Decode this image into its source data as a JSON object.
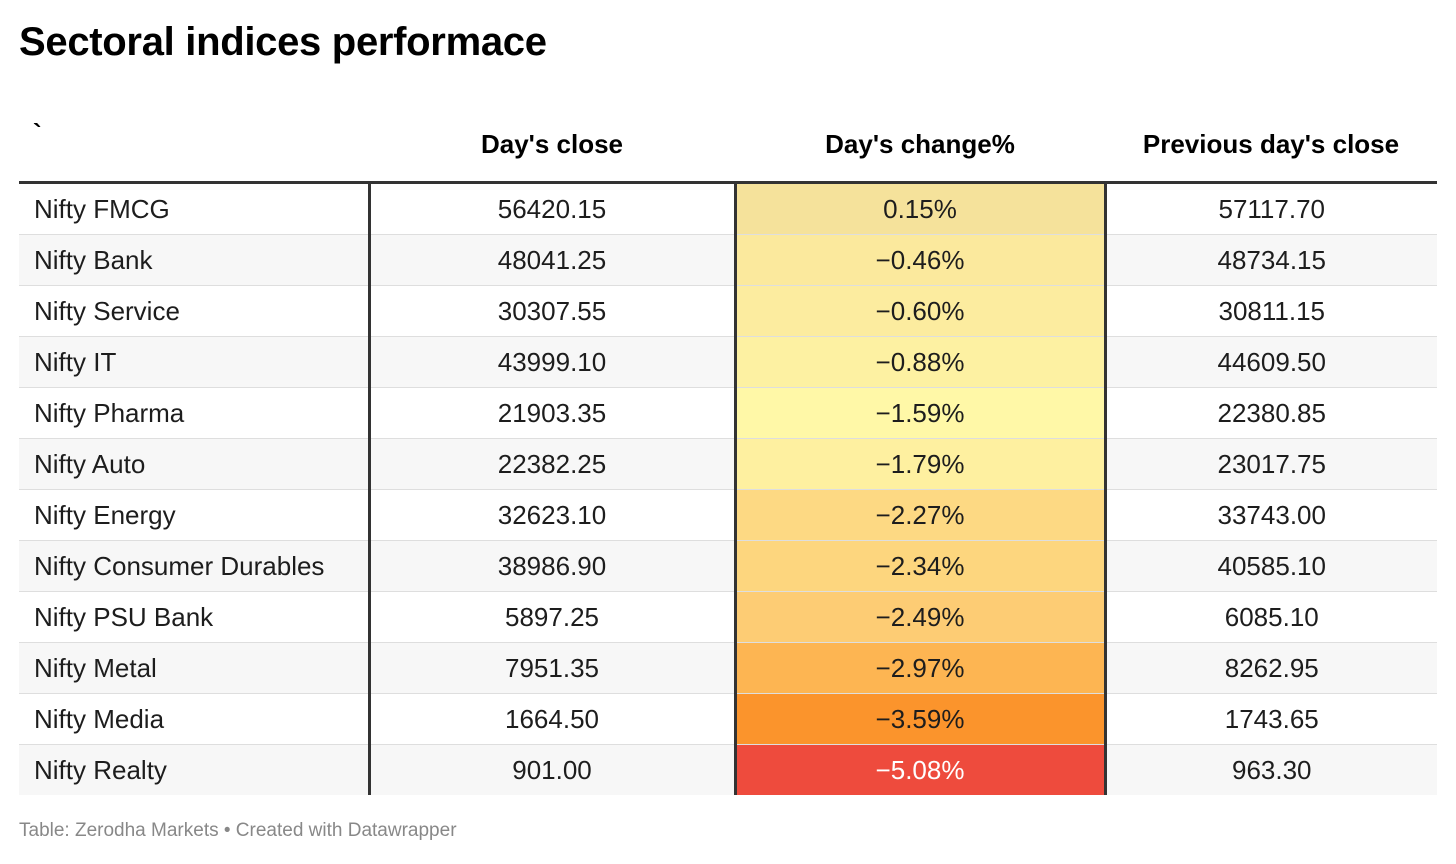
{
  "title": "Sectoral indices performace",
  "footer": "Table: Zerodha Markets • Created with Datawrapper",
  "colors": {
    "header_rule": "#333333",
    "row_alt": "#f7f7f7",
    "text": "#1d1d1d",
    "footer_text": "#888888"
  },
  "table": {
    "headers": [
      "`",
      "Day's close",
      "Day's change%",
      "Previous day's close"
    ],
    "rows": [
      {
        "name": "Nifty FMCG",
        "close": "56420.15",
        "change": "0.15%",
        "prev": "57117.70",
        "color": "#f5e29b",
        "text_color": "#1d1d1d"
      },
      {
        "name": "Nifty Bank",
        "close": "48041.25",
        "change": "−0.46%",
        "prev": "48734.15",
        "color": "#fbe99d",
        "text_color": "#1d1d1d"
      },
      {
        "name": "Nifty Service",
        "close": "30307.55",
        "change": "−0.60%",
        "prev": "30811.15",
        "color": "#fcec9f",
        "text_color": "#1d1d1d"
      },
      {
        "name": "Nifty IT",
        "close": "43999.10",
        "change": "−0.88%",
        "prev": "44609.50",
        "color": "#fdf1a2",
        "text_color": "#1d1d1d"
      },
      {
        "name": "Nifty Pharma",
        "close": "21903.35",
        "change": "−1.59%",
        "prev": "22380.85",
        "color": "#fff8a7",
        "text_color": "#1d1d1d"
      },
      {
        "name": "Nifty Auto",
        "close": "22382.25",
        "change": "−1.79%",
        "prev": "23017.75",
        "color": "#fef0a0",
        "text_color": "#1d1d1d"
      },
      {
        "name": "Nifty Energy",
        "close": "32623.10",
        "change": "−2.27%",
        "prev": "33743.00",
        "color": "#fdd983",
        "text_color": "#1d1d1d"
      },
      {
        "name": "Nifty Consumer Durables",
        "close": "38986.90",
        "change": "−2.34%",
        "prev": "40585.10",
        "color": "#fdd67e",
        "text_color": "#1d1d1d"
      },
      {
        "name": "Nifty PSU Bank",
        "close": "5897.25",
        "change": "−2.49%",
        "prev": "6085.10",
        "color": "#fdcc74",
        "text_color": "#1d1d1d"
      },
      {
        "name": "Nifty Metal",
        "close": "7951.35",
        "change": "−2.97%",
        "prev": "8262.95",
        "color": "#fdb552",
        "text_color": "#1d1d1d"
      },
      {
        "name": "Nifty Media",
        "close": "1664.50",
        "change": "−3.59%",
        "prev": "1743.65",
        "color": "#fb942c",
        "text_color": "#1d1d1d"
      },
      {
        "name": "Nifty Realty",
        "close": "901.00",
        "change": "−5.08%",
        "prev": "963.30",
        "color": "#ee4b3d",
        "text_color": "#ffffff"
      }
    ]
  },
  "chart_data": {
    "type": "table",
    "title": "Sectoral indices performace",
    "columns": [
      "`",
      "Day's close",
      "Day's change%",
      "Previous day's close"
    ],
    "rows": [
      [
        "Nifty FMCG",
        56420.15,
        0.15,
        57117.7
      ],
      [
        "Nifty Bank",
        48041.25,
        -0.46,
        48734.15
      ],
      [
        "Nifty Service",
        30307.55,
        -0.6,
        30811.15
      ],
      [
        "Nifty IT",
        43999.1,
        -0.88,
        44609.5
      ],
      [
        "Nifty Pharma",
        21903.35,
        -1.59,
        22380.85
      ],
      [
        "Nifty Auto",
        22382.25,
        -1.79,
        23017.75
      ],
      [
        "Nifty Energy",
        32623.1,
        -2.27,
        33743.0
      ],
      [
        "Nifty Consumer Durables",
        38986.9,
        -2.34,
        40585.1
      ],
      [
        "Nifty PSU Bank",
        5897.25,
        -2.49,
        6085.1
      ],
      [
        "Nifty Metal",
        7951.35,
        -2.97,
        8262.95
      ],
      [
        "Nifty Media",
        1664.5,
        -3.59,
        1743.65
      ],
      [
        "Nifty Realty",
        901.0,
        -5.08,
        963.3
      ]
    ],
    "heatmap_column": "Day's change%"
  }
}
